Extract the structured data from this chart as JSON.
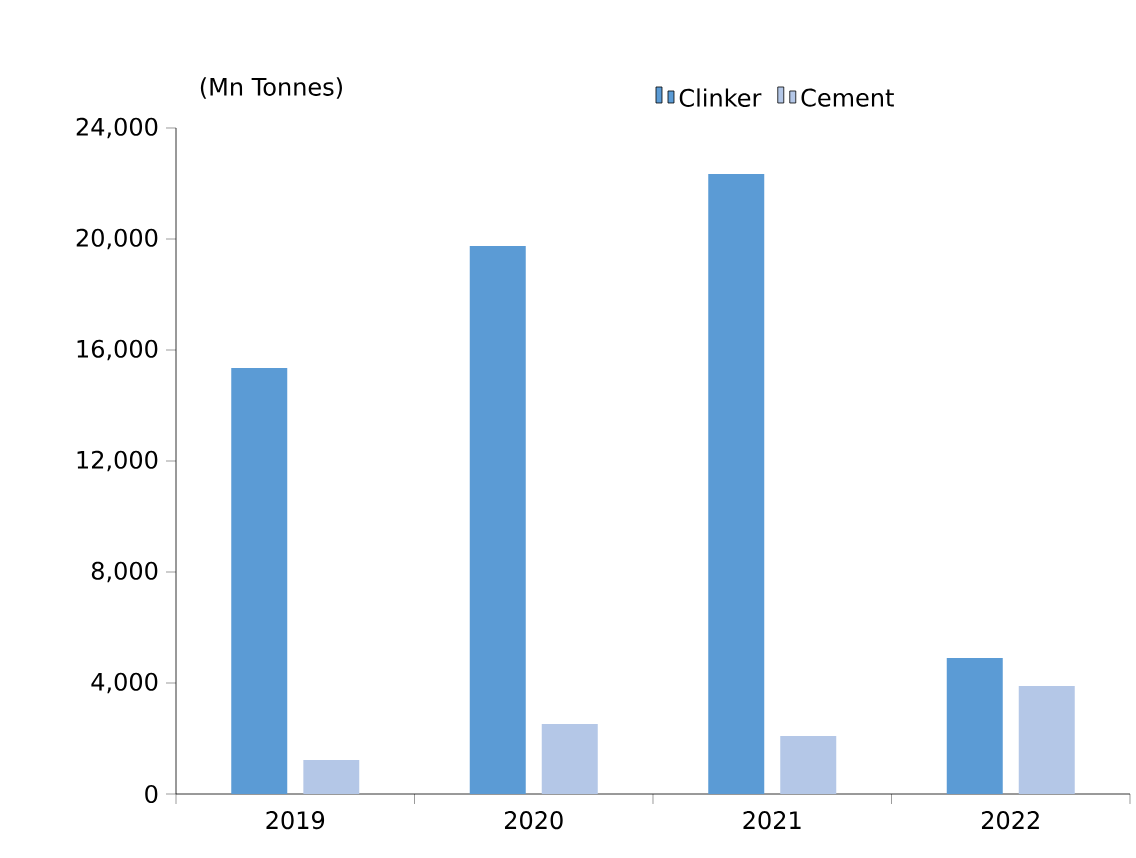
{
  "chart_data": {
    "type": "bar",
    "ylabel": "(Mn Tonnes)",
    "categories": [
      "2019",
      "2020",
      "2021",
      "2022"
    ],
    "series": [
      {
        "name": "Clinker",
        "color": "#5b9bd5",
        "values": [
          15350,
          19750,
          22340,
          4900
        ]
      },
      {
        "name": "Cement",
        "color": "#b4c7e7",
        "values": [
          1225,
          2520,
          2090,
          3890
        ]
      }
    ],
    "ylim": [
      0,
      24000
    ],
    "yticks": [
      0,
      {
        "value": 4000,
        "label": "4,000"
      },
      {
        "value": 8000,
        "label": "8,000"
      },
      {
        "value": 12000,
        "label": "12,000"
      },
      {
        "value": 16000,
        "label": "16,000"
      },
      {
        "value": 20000,
        "label": "20,000"
      },
      {
        "value": 24000,
        "label": "24,000"
      }
    ],
    "legend": "top"
  }
}
